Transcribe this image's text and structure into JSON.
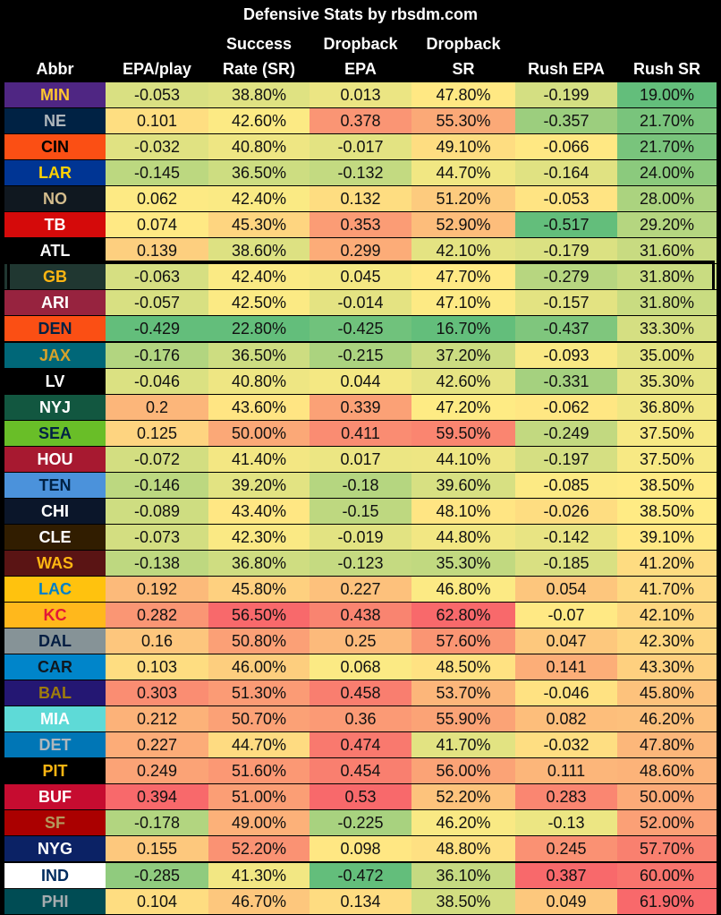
{
  "chart_data": {
    "type": "table",
    "title": "Defensive Stats by rbsdm.com",
    "columns": [
      {
        "key": "abbr",
        "line1": "",
        "line2": "Abbr"
      },
      {
        "key": "epa_play",
        "line1": "",
        "line2": "EPA/play"
      },
      {
        "key": "success_rate",
        "line1": "Success",
        "line2": "Rate (SR)"
      },
      {
        "key": "dropback_epa",
        "line1": "Dropback",
        "line2": "EPA"
      },
      {
        "key": "dropback_sr",
        "line1": "Dropback",
        "line2": "SR"
      },
      {
        "key": "rush_epa",
        "line1": "",
        "line2": "Rush EPA"
      },
      {
        "key": "rush_sr",
        "line1": "",
        "line2": "Rush SR"
      }
    ],
    "highlighted_team": "GB",
    "rows": [
      {
        "abbr": "MIN",
        "team_bg": "#4F2683",
        "team_fg": "#FFC62F",
        "values": [
          "-0.053",
          "38.80%",
          "0.013",
          "47.80%",
          "-0.199",
          "19.00%"
        ]
      },
      {
        "abbr": "NE",
        "team_bg": "#002244",
        "team_fg": "#B0B7BC",
        "values": [
          "0.101",
          "42.60%",
          "0.378",
          "55.30%",
          "-0.357",
          "21.70%"
        ]
      },
      {
        "abbr": "CIN",
        "team_bg": "#FB4F14",
        "team_fg": "#000000",
        "values": [
          "-0.032",
          "40.80%",
          "-0.017",
          "49.10%",
          "-0.066",
          "21.70%"
        ]
      },
      {
        "abbr": "LAR",
        "team_bg": "#003594",
        "team_fg": "#FFD100",
        "values": [
          "-0.145",
          "36.50%",
          "-0.132",
          "44.70%",
          "-0.164",
          "24.00%"
        ]
      },
      {
        "abbr": "NO",
        "team_bg": "#101820",
        "team_fg": "#D3BC8D",
        "values": [
          "0.062",
          "42.40%",
          "0.132",
          "51.20%",
          "-0.053",
          "28.00%"
        ]
      },
      {
        "abbr": "TB",
        "team_bg": "#D50A0A",
        "team_fg": "#FFFFFF",
        "values": [
          "0.074",
          "45.30%",
          "0.353",
          "52.90%",
          "-0.517",
          "29.20%"
        ]
      },
      {
        "abbr": "ATL",
        "team_bg": "#000000",
        "team_fg": "#FFFFFF",
        "values": [
          "0.139",
          "38.60%",
          "0.299",
          "42.10%",
          "-0.179",
          "31.60%"
        ]
      },
      {
        "abbr": "GB",
        "team_bg": "#203731",
        "team_fg": "#FFB612",
        "values": [
          "-0.063",
          "42.40%",
          "0.045",
          "47.70%",
          "-0.279",
          "31.80%"
        ]
      },
      {
        "abbr": "ARI",
        "team_bg": "#97233F",
        "team_fg": "#FFFFFF",
        "values": [
          "-0.057",
          "42.50%",
          "-0.014",
          "47.10%",
          "-0.157",
          "31.80%"
        ]
      },
      {
        "abbr": "DEN",
        "team_bg": "#FB4F14",
        "team_fg": "#002244",
        "values": [
          "-0.429",
          "22.80%",
          "-0.425",
          "16.70%",
          "-0.437",
          "33.30%"
        ]
      },
      {
        "abbr": "JAX",
        "team_bg": "#006778",
        "team_fg": "#D7A22A",
        "values": [
          "-0.176",
          "36.50%",
          "-0.215",
          "37.20%",
          "-0.093",
          "35.00%"
        ]
      },
      {
        "abbr": "LV",
        "team_bg": "#000000",
        "team_fg": "#FFFFFF",
        "values": [
          "-0.046",
          "40.80%",
          "0.044",
          "42.60%",
          "-0.331",
          "35.30%"
        ]
      },
      {
        "abbr": "NYJ",
        "team_bg": "#125740",
        "team_fg": "#FFFFFF",
        "values": [
          "0.2",
          "43.60%",
          "0.339",
          "47.20%",
          "-0.062",
          "36.80%"
        ]
      },
      {
        "abbr": "SEA",
        "team_bg": "#69BE28",
        "team_fg": "#002244",
        "values": [
          "0.125",
          "50.00%",
          "0.411",
          "59.50%",
          "-0.249",
          "37.50%"
        ]
      },
      {
        "abbr": "HOU",
        "team_bg": "#A71930",
        "team_fg": "#FFFFFF",
        "values": [
          "-0.072",
          "41.40%",
          "0.017",
          "44.10%",
          "-0.197",
          "37.50%"
        ]
      },
      {
        "abbr": "TEN",
        "team_bg": "#4B92DB",
        "team_fg": "#002244",
        "values": [
          "-0.146",
          "39.20%",
          "-0.18",
          "39.60%",
          "-0.085",
          "38.50%"
        ]
      },
      {
        "abbr": "CHI",
        "team_bg": "#0B162A",
        "team_fg": "#FFFFFF",
        "values": [
          "-0.089",
          "43.40%",
          "-0.15",
          "48.10%",
          "-0.026",
          "38.50%"
        ]
      },
      {
        "abbr": "CLE",
        "team_bg": "#311D00",
        "team_fg": "#FFFFFF",
        "values": [
          "-0.073",
          "42.30%",
          "-0.019",
          "44.80%",
          "-0.142",
          "39.10%"
        ]
      },
      {
        "abbr": "WAS",
        "team_bg": "#5A1414",
        "team_fg": "#FFB612",
        "values": [
          "-0.138",
          "36.80%",
          "-0.123",
          "35.30%",
          "-0.185",
          "41.20%"
        ]
      },
      {
        "abbr": "LAC",
        "team_bg": "#FFC20E",
        "team_fg": "#0080C6",
        "values": [
          "0.192",
          "45.80%",
          "0.227",
          "46.80%",
          "0.054",
          "41.70%"
        ]
      },
      {
        "abbr": "KC",
        "team_bg": "#FFB81C",
        "team_fg": "#E31837",
        "values": [
          "0.282",
          "56.50%",
          "0.438",
          "62.80%",
          "-0.07",
          "42.10%"
        ]
      },
      {
        "abbr": "DAL",
        "team_bg": "#869397",
        "team_fg": "#041E42",
        "values": [
          "0.16",
          "50.80%",
          "0.25",
          "57.60%",
          "0.047",
          "42.30%"
        ]
      },
      {
        "abbr": "CAR",
        "team_bg": "#0085CA",
        "team_fg": "#101820",
        "values": [
          "0.103",
          "46.00%",
          "0.068",
          "48.50%",
          "0.141",
          "43.30%"
        ]
      },
      {
        "abbr": "BAL",
        "team_bg": "#241773",
        "team_fg": "#9E7C0C",
        "values": [
          "0.303",
          "51.30%",
          "0.458",
          "53.70%",
          "-0.046",
          "45.80%"
        ]
      },
      {
        "abbr": "MIA",
        "team_bg": "#5EDAD7",
        "team_fg": "#FFFFFF",
        "values": [
          "0.212",
          "50.70%",
          "0.36",
          "55.90%",
          "0.082",
          "46.20%"
        ]
      },
      {
        "abbr": "DET",
        "team_bg": "#0076B6",
        "team_fg": "#B0B7BC",
        "values": [
          "0.227",
          "44.70%",
          "0.474",
          "41.70%",
          "-0.032",
          "47.80%"
        ]
      },
      {
        "abbr": "PIT",
        "team_bg": "#000000",
        "team_fg": "#FFB612",
        "values": [
          "0.249",
          "51.60%",
          "0.454",
          "56.00%",
          "0.111",
          "48.60%"
        ]
      },
      {
        "abbr": "BUF",
        "team_bg": "#C60C30",
        "team_fg": "#FFFFFF",
        "values": [
          "0.394",
          "51.00%",
          "0.53",
          "52.20%",
          "0.283",
          "50.00%"
        ]
      },
      {
        "abbr": "SF",
        "team_bg": "#AA0000",
        "team_fg": "#B3995D",
        "values": [
          "-0.178",
          "49.00%",
          "-0.225",
          "46.20%",
          "-0.13",
          "52.00%"
        ]
      },
      {
        "abbr": "NYG",
        "team_bg": "#0B2265",
        "team_fg": "#FFFFFF",
        "values": [
          "0.155",
          "52.20%",
          "0.098",
          "48.80%",
          "0.245",
          "57.70%"
        ]
      },
      {
        "abbr": "IND",
        "team_bg": "#FFFFFF",
        "team_fg": "#002C5F",
        "values": [
          "-0.285",
          "41.30%",
          "-0.472",
          "36.10%",
          "0.387",
          "60.00%"
        ]
      },
      {
        "abbr": "PHI",
        "team_bg": "#004C54",
        "team_fg": "#A5ACAF",
        "values": [
          "0.104",
          "46.70%",
          "0.134",
          "38.50%",
          "0.049",
          "61.90%"
        ]
      }
    ]
  }
}
